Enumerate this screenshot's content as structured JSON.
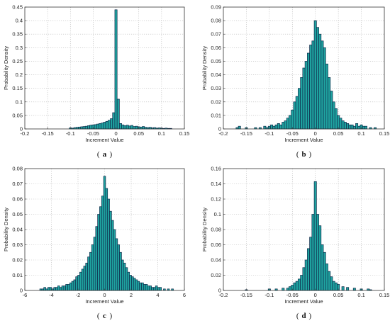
{
  "colors": {
    "bar_fill": "#1fa3a0",
    "bar_edge": "#0f2a4a",
    "background": "#ffffff"
  },
  "chart_data": [
    {
      "type": "bar",
      "panel_label": "a",
      "xlabel": "Increment Value",
      "ylabel": "Probability Density",
      "xlim": [
        -0.2,
        0.15
      ],
      "ylim": [
        0,
        0.45
      ],
      "xticks": [
        "-0.2",
        "-0.15",
        "-0.1",
        "-0.05",
        "0",
        "0.05",
        "0.1",
        "0.15"
      ],
      "yticks": [
        "0",
        "0.05",
        "0.1",
        "0.15",
        "0.2",
        "0.25",
        "0.3",
        "0.35",
        "0.4",
        "0.45"
      ],
      "grid": true,
      "bin_width": 0.005,
      "x": [
        -0.1,
        -0.095,
        -0.09,
        -0.085,
        -0.08,
        -0.075,
        -0.07,
        -0.065,
        -0.06,
        -0.055,
        -0.05,
        -0.045,
        -0.04,
        -0.035,
        -0.03,
        -0.025,
        -0.02,
        -0.015,
        -0.01,
        -0.005,
        0,
        0.005,
        0.01,
        0.015,
        0.02,
        0.025,
        0.03,
        0.035,
        0.04,
        0.045,
        0.05,
        0.055,
        0.06,
        0.065,
        0.07,
        0.075,
        0.08,
        0.085,
        0.09,
        0.095,
        0.1,
        0.105,
        0.11,
        0.115,
        0.12
      ],
      "values": [
        0.004,
        0.003,
        0.005,
        0.006,
        0.007,
        0.008,
        0.009,
        0.01,
        0.012,
        0.014,
        0.015,
        0.016,
        0.018,
        0.02,
        0.022,
        0.025,
        0.028,
        0.032,
        0.038,
        0.06,
        0.44,
        0.11,
        0.02,
        0.015,
        0.012,
        0.014,
        0.011,
        0.013,
        0.009,
        0.01,
        0.008,
        0.007,
        0.009,
        0.006,
        0.005,
        0.006,
        0.004,
        0.005,
        0.003,
        0.004,
        0.003,
        0.002,
        0.003,
        0.002,
        0.002
      ]
    },
    {
      "type": "bar",
      "panel_label": "b",
      "xlabel": "Increment Value",
      "ylabel": "Probability Density",
      "xlim": [
        -0.2,
        0.15
      ],
      "ylim": [
        0,
        0.09
      ],
      "xticks": [
        "-0.2",
        "-0.15",
        "-0.1",
        "-0.05",
        "0",
        "0.05",
        "0.1",
        "0.15"
      ],
      "yticks": [
        "0",
        "0.01",
        "0.02",
        "0.03",
        "0.04",
        "0.05",
        "0.06",
        "0.07",
        "0.08",
        "0.09"
      ],
      "grid": true,
      "bin_width": 0.005,
      "x": [
        -0.17,
        -0.165,
        -0.15,
        -0.13,
        -0.12,
        -0.11,
        -0.105,
        -0.1,
        -0.095,
        -0.09,
        -0.085,
        -0.08,
        -0.075,
        -0.07,
        -0.065,
        -0.06,
        -0.055,
        -0.05,
        -0.045,
        -0.04,
        -0.035,
        -0.03,
        -0.025,
        -0.02,
        -0.015,
        -0.01,
        -0.005,
        0,
        0.005,
        0.01,
        0.015,
        0.02,
        0.025,
        0.03,
        0.035,
        0.04,
        0.045,
        0.05,
        0.055,
        0.06,
        0.065,
        0.07,
        0.075,
        0.08,
        0.085,
        0.09,
        0.095,
        0.1,
        0.105,
        0.11,
        0.12,
        0.13
      ],
      "values": [
        0.001,
        0.002,
        0.001,
        0.001,
        0.001,
        0.002,
        0.001,
        0.002,
        0.003,
        0.002,
        0.003,
        0.004,
        0.003,
        0.005,
        0.006,
        0.008,
        0.01,
        0.014,
        0.02,
        0.024,
        0.03,
        0.038,
        0.045,
        0.05,
        0.056,
        0.062,
        0.065,
        0.08,
        0.075,
        0.07,
        0.065,
        0.06,
        0.048,
        0.038,
        0.028,
        0.02,
        0.015,
        0.01,
        0.008,
        0.006,
        0.005,
        0.004,
        0.003,
        0.003,
        0.002,
        0.004,
        0.002,
        0.003,
        0.002,
        0.002,
        0.001,
        0.001
      ]
    },
    {
      "type": "bar",
      "panel_label": "c",
      "xlabel": "Increment Value",
      "ylabel": "Probability Density",
      "xlim": [
        -6,
        6
      ],
      "ylim": [
        0,
        0.08
      ],
      "xticks": [
        "-6",
        "-4",
        "-2",
        "0",
        "2",
        "4",
        "6"
      ],
      "yticks": [
        "0",
        "0.01",
        "0.02",
        "0.03",
        "0.04",
        "0.05",
        "0.06",
        "0.07",
        "0.08"
      ],
      "grid": true,
      "bin_width": 0.15,
      "x": [
        -4.8,
        -4.65,
        -4.5,
        -4.35,
        -4.2,
        -4.05,
        -3.9,
        -3.75,
        -3.6,
        -3.45,
        -3.3,
        -3.15,
        -3.0,
        -2.85,
        -2.7,
        -2.55,
        -2.4,
        -2.25,
        -2.1,
        -1.95,
        -1.8,
        -1.65,
        -1.5,
        -1.35,
        -1.2,
        -1.05,
        -0.9,
        -0.75,
        -0.6,
        -0.45,
        -0.3,
        -0.15,
        0,
        0.15,
        0.3,
        0.45,
        0.6,
        0.75,
        0.9,
        1.05,
        1.2,
        1.35,
        1.5,
        1.65,
        1.8,
        1.95,
        2.1,
        2.25,
        2.4,
        2.55,
        2.7,
        2.85,
        3.0,
        3.15,
        3.3,
        3.45,
        3.6,
        3.75,
        3.9,
        4.05,
        4.2,
        4.5,
        4.8,
        5.1
      ],
      "values": [
        0.001,
        0.001,
        0.002,
        0.001,
        0.002,
        0.002,
        0.001,
        0.002,
        0.002,
        0.003,
        0.002,
        0.003,
        0.003,
        0.004,
        0.004,
        0.005,
        0.006,
        0.007,
        0.009,
        0.01,
        0.012,
        0.014,
        0.016,
        0.018,
        0.022,
        0.025,
        0.03,
        0.035,
        0.042,
        0.05,
        0.055,
        0.062,
        0.075,
        0.067,
        0.06,
        0.052,
        0.046,
        0.04,
        0.034,
        0.03,
        0.025,
        0.02,
        0.018,
        0.015,
        0.012,
        0.01,
        0.009,
        0.008,
        0.007,
        0.006,
        0.005,
        0.005,
        0.004,
        0.004,
        0.003,
        0.003,
        0.002,
        0.002,
        0.003,
        0.002,
        0.002,
        0.001,
        0.001,
        0.001
      ]
    },
    {
      "type": "bar",
      "panel_label": "d",
      "xlabel": "Increment Value",
      "ylabel": "Probability Density",
      "xlim": [
        -0.2,
        0.15
      ],
      "ylim": [
        0,
        0.16
      ],
      "xticks": [
        "-0.2",
        "-0.15",
        "-0.1",
        "-0.05",
        "0",
        "0.05",
        "0.1",
        "0.15"
      ],
      "yticks": [
        "0",
        "0.02",
        "0.04",
        "0.06",
        "0.08",
        "0.1",
        "0.12",
        "0.14",
        "0.16"
      ],
      "grid": true,
      "bin_width": 0.005,
      "x": [
        -0.15,
        -0.1,
        -0.085,
        -0.07,
        -0.06,
        -0.055,
        -0.05,
        -0.045,
        -0.04,
        -0.035,
        -0.03,
        -0.025,
        -0.02,
        -0.015,
        -0.01,
        -0.005,
        0,
        0.005,
        0.01,
        0.015,
        0.02,
        0.025,
        0.03,
        0.035,
        0.04,
        0.045,
        0.05,
        0.06,
        0.07,
        0.085,
        0.1,
        0.115,
        0.12
      ],
      "values": [
        0.001,
        0.002,
        0.002,
        0.003,
        0.003,
        0.005,
        0.007,
        0.01,
        0.012,
        0.015,
        0.02,
        0.03,
        0.04,
        0.055,
        0.07,
        0.1,
        0.143,
        0.1,
        0.085,
        0.06,
        0.05,
        0.035,
        0.025,
        0.018,
        0.012,
        0.01,
        0.008,
        0.005,
        0.004,
        0.003,
        0.002,
        0.002,
        0.001
      ]
    }
  ]
}
